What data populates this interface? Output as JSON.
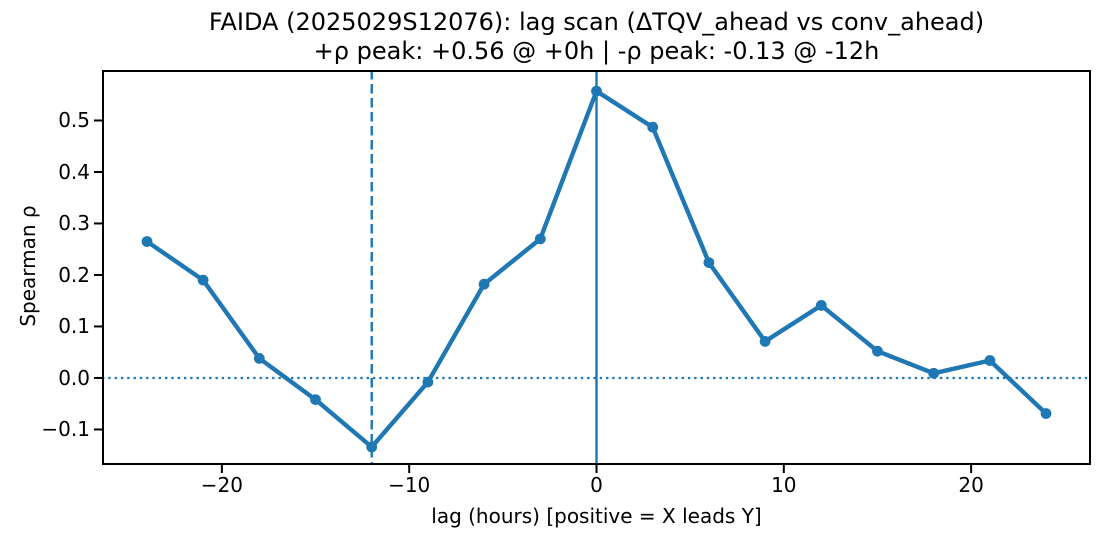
{
  "figure": {
    "background": "#ffffff",
    "text_color": "#000000"
  },
  "chart_data": {
    "type": "line",
    "title": "FAIDA (2025029S12076): lag scan (ΔTQV_ahead vs conv_ahead)",
    "subtitle": "+ρ peak: +0.56 @ +0h | -ρ peak: -0.13 @ -12h",
    "xlabel": "lag (hours) [positive = X leads Y]",
    "ylabel": "Spearman ρ",
    "series": [
      {
        "name": "spearman-rho-vs-lag",
        "x": [
          -24,
          -21,
          -18,
          -15,
          -12,
          -9,
          -6,
          -3,
          0,
          3,
          6,
          9,
          12,
          15,
          18,
          21,
          24
        ],
        "y": [
          0.265,
          0.19,
          0.038,
          -0.042,
          -0.134,
          -0.008,
          0.182,
          0.27,
          0.557,
          0.487,
          0.224,
          0.071,
          0.141,
          0.052,
          0.009,
          0.034,
          -0.069
        ]
      }
    ],
    "positive_peak": {
      "rho": "+0.56",
      "lag": "+0h"
    },
    "negative_peak": {
      "rho": "-0.13",
      "lag": "-12h"
    },
    "xlim": [
      -26.4,
      26.4
    ],
    "ylim": [
      -0.169,
      0.598
    ],
    "xticks": [
      -20,
      -10,
      0,
      10,
      20
    ],
    "xtick_labels": [
      "−20",
      "−10",
      "0",
      "10",
      "20"
    ],
    "yticks": [
      0.5,
      0.4,
      0.3,
      0.2,
      0.1,
      0.0,
      -0.1
    ],
    "ytick_labels": [
      "0.5",
      "0.4",
      "0.3",
      "0.2",
      "0.1",
      "0.0",
      "−0.1"
    ],
    "grid": false,
    "legend": null,
    "reference_lines": {
      "solid_vline_x": 0,
      "dashed_vline_x": -12,
      "dotted_hline_y": 0
    },
    "line_color": "#1f77b4",
    "marker": "circle",
    "spine_color": "#000000"
  }
}
